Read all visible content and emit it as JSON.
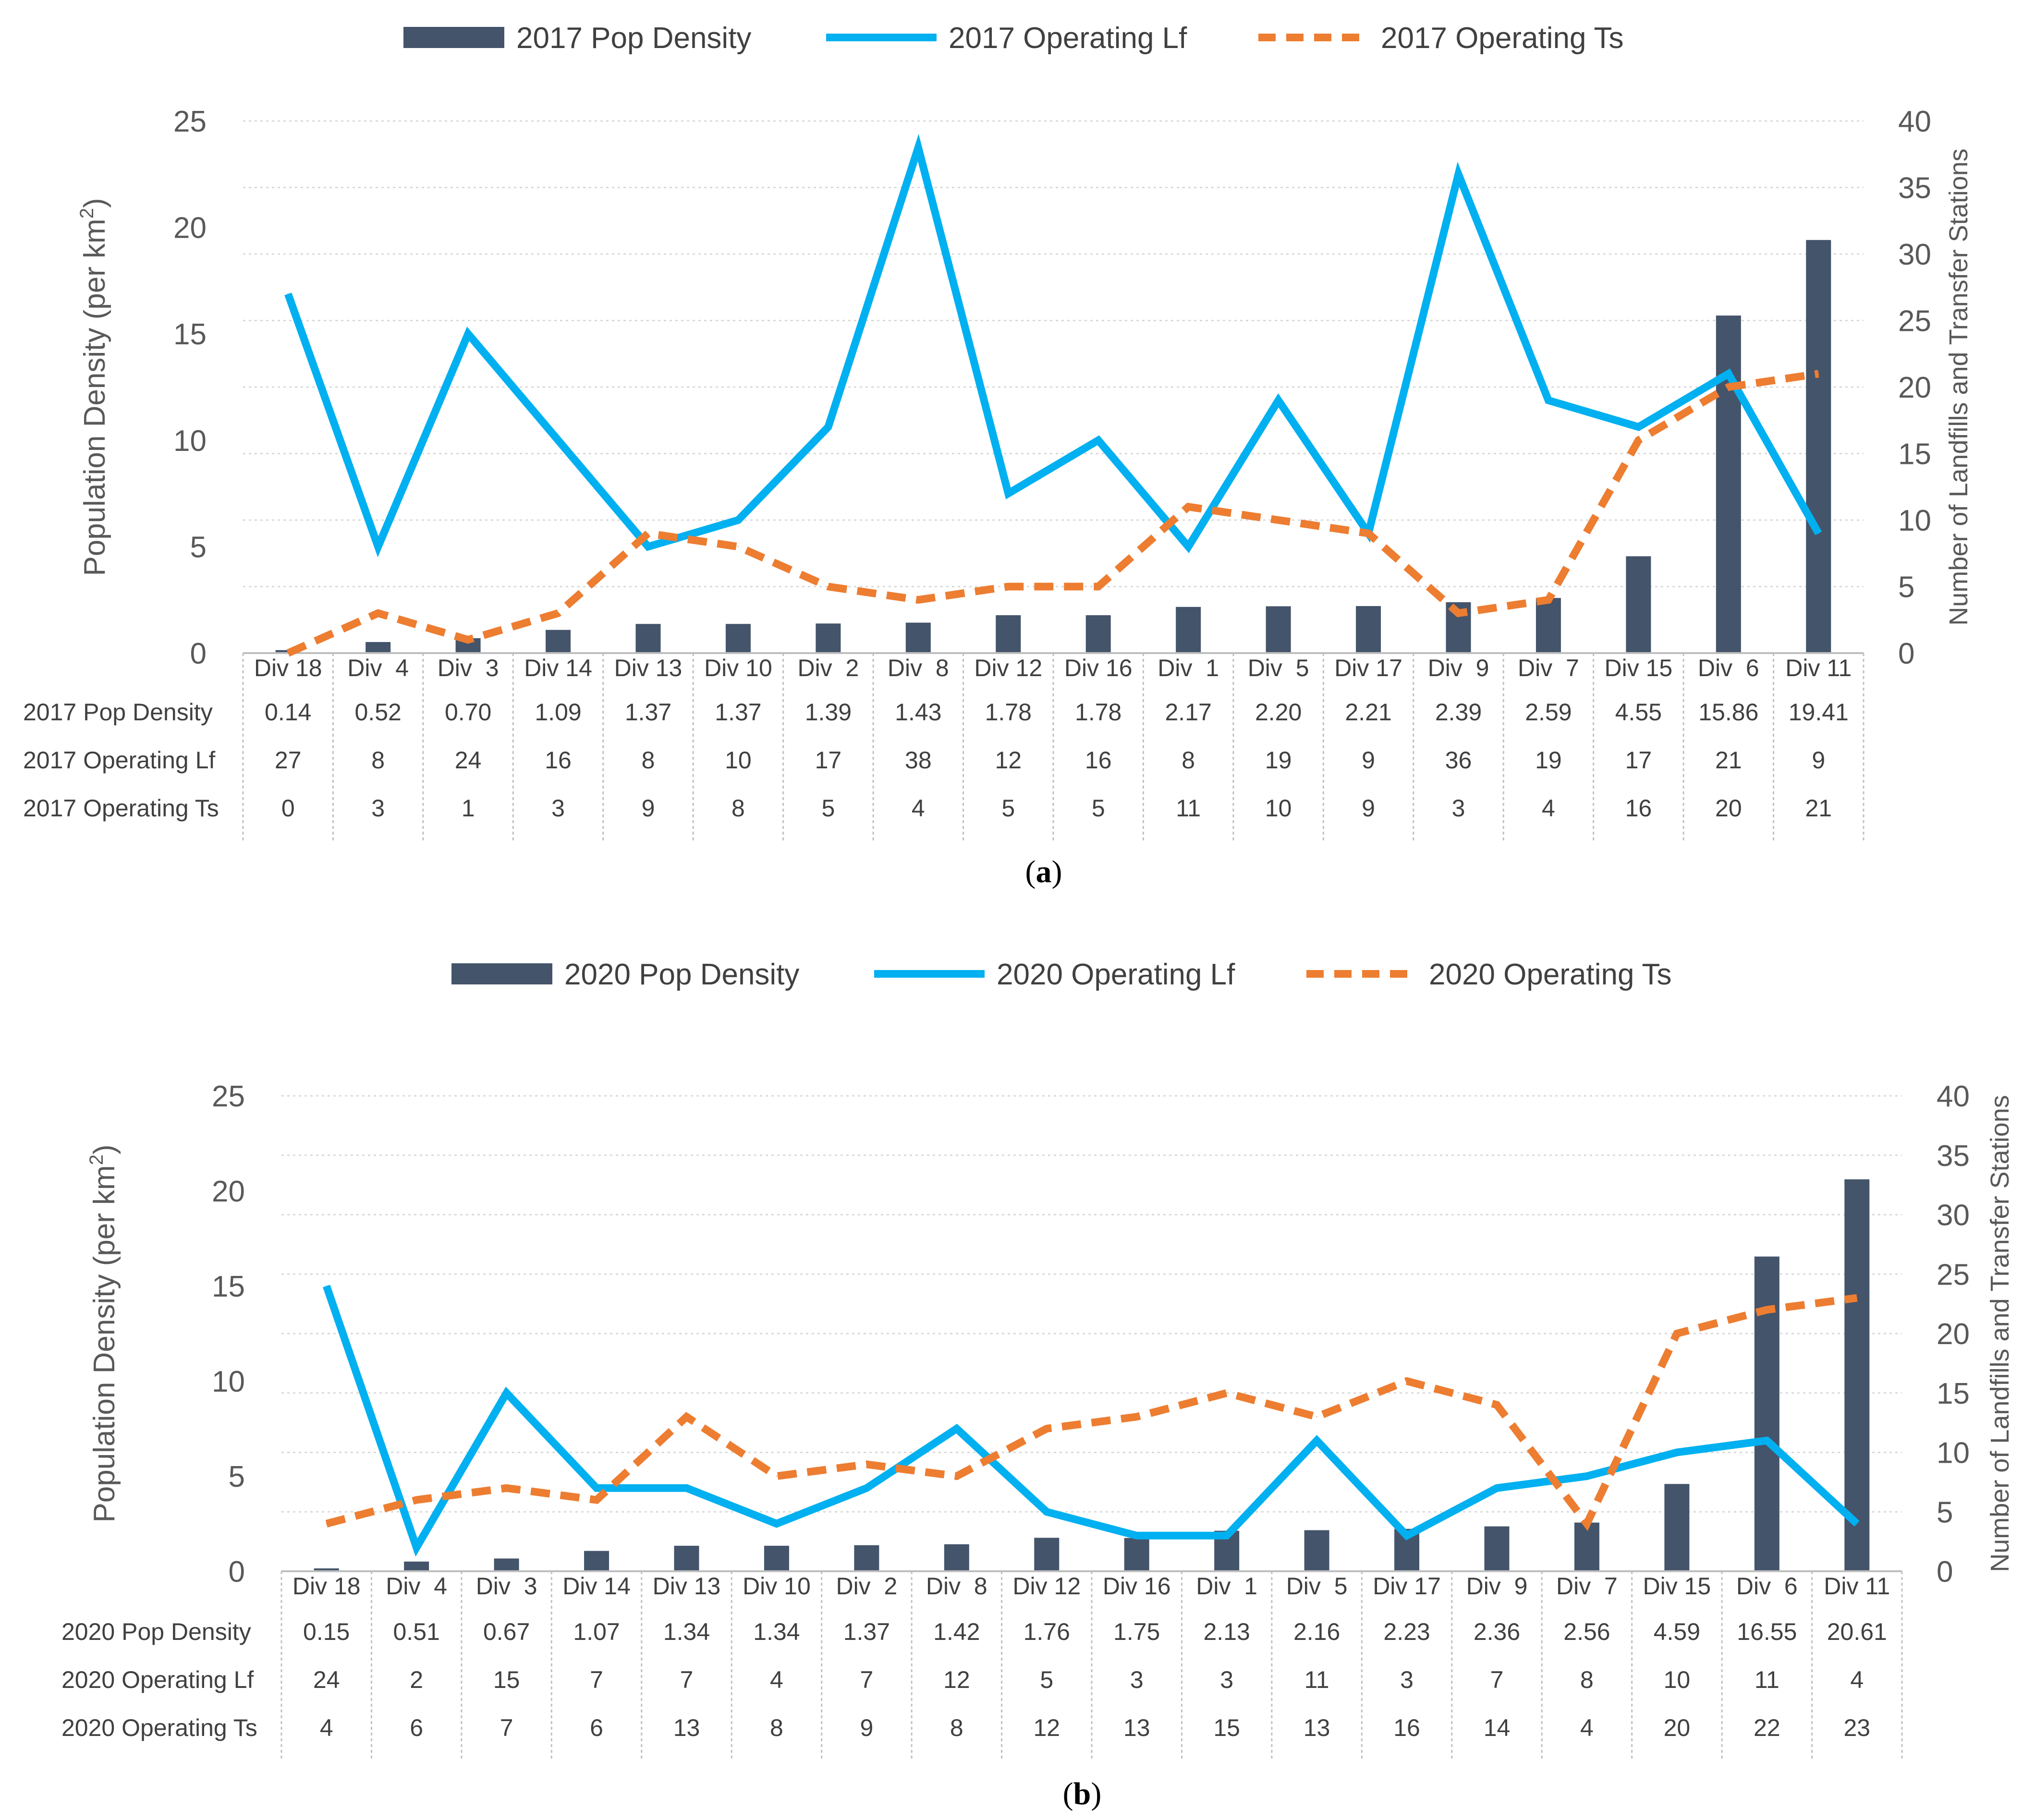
{
  "chart_data": [
    {
      "type": "bar+line",
      "panel": "(a)",
      "panel_open": "(",
      "panel_letter": "a",
      "panel_close": ")",
      "categories": [
        "Div 18",
        "Div  4",
        "Div  3",
        "Div 14",
        "Div 13",
        "Div 10",
        "Div  2",
        "Div  8",
        "Div 12",
        "Div 16",
        "Div  1",
        "Div  5",
        "Div 17",
        "Div  9",
        "Div  7",
        "Div 15",
        "Div  6",
        "Div 11"
      ],
      "ylabel_left": "Population Density (per km",
      "ylabel_left_sup": "2",
      "ylabel_left_close": ")",
      "ylabel_right": "Number of Landfills and Transfer Stations",
      "ylim_left": [
        0,
        25
      ],
      "yticks_left": [
        "0",
        "5",
        "10",
        "15",
        "20",
        "25"
      ],
      "ylim_right": [
        0,
        40
      ],
      "yticks_right": [
        "0",
        "5",
        "10",
        "15",
        "20",
        "25",
        "30",
        "35",
        "40"
      ],
      "grid": true,
      "legend": "top",
      "series": [
        {
          "name": "2017 Pop Density",
          "kind": "bar",
          "axis": "left",
          "color": "#44546a",
          "values": [
            0.14,
            0.52,
            0.7,
            1.09,
            1.37,
            1.37,
            1.39,
            1.43,
            1.78,
            1.78,
            2.17,
            2.2,
            2.21,
            2.39,
            2.59,
            4.55,
            15.86,
            19.41
          ],
          "labels": [
            "0.14",
            "0.52",
            "0.70",
            "1.09",
            "1.37",
            "1.37",
            "1.39",
            "1.43",
            "1.78",
            "1.78",
            "2.17",
            "2.20",
            "2.21",
            "2.39",
            "2.59",
            "4.55",
            "15.86",
            "19.41"
          ]
        },
        {
          "name": "2017 Operating Lf",
          "kind": "line",
          "axis": "right",
          "color": "#00b0f0",
          "values": [
            27,
            8,
            24,
            16,
            8,
            10,
            17,
            38,
            12,
            16,
            8,
            19,
            9,
            36,
            19,
            17,
            21,
            9
          ],
          "labels": [
            "27",
            "8",
            "24",
            "16",
            "8",
            "10",
            "17",
            "38",
            "12",
            "16",
            "8",
            "19",
            "9",
            "36",
            "19",
            "17",
            "21",
            "9"
          ]
        },
        {
          "name": "2017 Operating Ts",
          "kind": "dashed-line",
          "axis": "right",
          "color": "#ed7d31",
          "values": [
            0,
            3,
            1,
            3,
            9,
            8,
            5,
            4,
            5,
            5,
            11,
            10,
            9,
            3,
            4,
            16,
            20,
            21
          ],
          "labels": [
            "0",
            "3",
            "1",
            "3",
            "9",
            "8",
            "5",
            "4",
            "5",
            "5",
            "11",
            "10",
            "9",
            "3",
            "4",
            "16",
            "20",
            "21"
          ]
        }
      ]
    },
    {
      "type": "bar+line",
      "panel": "(b)",
      "panel_open": "(",
      "panel_letter": "b",
      "panel_close": ")",
      "categories": [
        "Div 18",
        "Div  4",
        "Div  3",
        "Div 14",
        "Div 13",
        "Div 10",
        "Div  2",
        "Div  8",
        "Div 12",
        "Div 16",
        "Div  1",
        "Div  5",
        "Div 17",
        "Div  9",
        "Div  7",
        "Div 15",
        "Div  6",
        "Div 11"
      ],
      "ylabel_left": "Population Density (per km",
      "ylabel_left_sup": "2",
      "ylabel_left_close": ")",
      "ylabel_right": "Number of Landfills and Transfer Stations",
      "ylim_left": [
        0,
        25
      ],
      "yticks_left": [
        "0",
        "5",
        "10",
        "15",
        "20",
        "25"
      ],
      "ylim_right": [
        0,
        40
      ],
      "yticks_right": [
        "0",
        "5",
        "10",
        "15",
        "20",
        "25",
        "30",
        "35",
        "40"
      ],
      "grid": true,
      "legend": "top",
      "series": [
        {
          "name": "2020 Pop Density",
          "kind": "bar",
          "axis": "left",
          "color": "#44546a",
          "values": [
            0.15,
            0.51,
            0.67,
            1.07,
            1.34,
            1.34,
            1.37,
            1.42,
            1.76,
            1.75,
            2.13,
            2.16,
            2.23,
            2.36,
            2.56,
            4.59,
            16.55,
            20.61
          ],
          "labels": [
            "0.15",
            "0.51",
            "0.67",
            "1.07",
            "1.34",
            "1.34",
            "1.37",
            "1.42",
            "1.76",
            "1.75",
            "2.13",
            "2.16",
            "2.23",
            "2.36",
            "2.56",
            "4.59",
            "16.55",
            "20.61"
          ]
        },
        {
          "name": "2020 Operating Lf",
          "kind": "line",
          "axis": "right",
          "color": "#00b0f0",
          "values": [
            24,
            2,
            15,
            7,
            7,
            4,
            7,
            12,
            5,
            3,
            3,
            11,
            3,
            7,
            8,
            10,
            11,
            4
          ],
          "labels": [
            "24",
            "2",
            "15",
            "7",
            "7",
            "4",
            "7",
            "12",
            "5",
            "3",
            "3",
            "11",
            "3",
            "7",
            "8",
            "10",
            "11",
            "4"
          ]
        },
        {
          "name": "2020 Operating Ts",
          "kind": "dashed-line",
          "axis": "right",
          "color": "#ed7d31",
          "values": [
            4,
            6,
            7,
            6,
            13,
            8,
            9,
            8,
            12,
            13,
            15,
            13,
            16,
            14,
            4,
            20,
            22,
            23
          ],
          "labels": [
            "4",
            "6",
            "7",
            "6",
            "13",
            "8",
            "9",
            "8",
            "12",
            "13",
            "15",
            "13",
            "16",
            "14",
            "4",
            "20",
            "22",
            "23"
          ]
        }
      ]
    }
  ]
}
